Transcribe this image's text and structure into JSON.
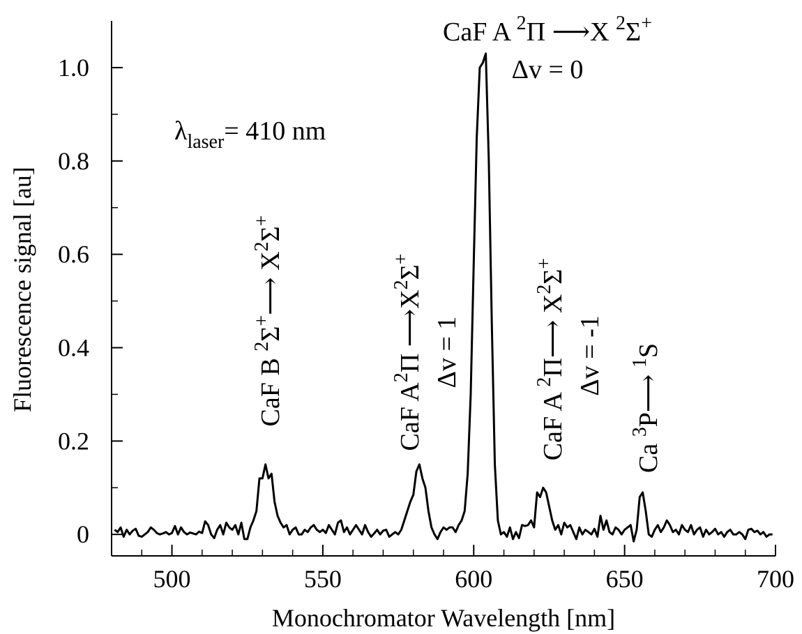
{
  "chart_data": {
    "type": "line",
    "xlabel": "Monochromator Wavelength [nm]",
    "ylabel": "Fluorescence signal [au]",
    "xlim": [
      480,
      700
    ],
    "ylim": [
      -0.046,
      1.1
    ],
    "xticks": [
      500,
      550,
      600,
      650,
      700
    ],
    "xminorticks": [
      490,
      510,
      520,
      530,
      540,
      560,
      570,
      580,
      590,
      610,
      620,
      630,
      640,
      660,
      670,
      680,
      690
    ],
    "yticks": [
      0,
      0.2,
      0.4,
      0.6,
      0.8,
      {
        "value": 1,
        "label": "1.0"
      }
    ],
    "yminorticks": [
      0.1,
      0.3,
      0.5,
      0.7,
      0.9
    ],
    "series": [
      {
        "color": "#000000",
        "x": [
          481,
          482,
          483,
          484,
          485,
          486,
          487,
          488,
          489,
          490,
          491,
          492,
          493,
          494,
          495,
          496,
          497,
          498,
          499,
          500,
          501,
          502,
          503,
          504,
          505,
          506,
          507,
          508,
          509,
          510,
          511,
          512,
          513,
          514,
          515,
          516,
          517,
          518,
          519,
          520,
          521,
          522,
          523,
          524,
          525,
          526,
          527,
          528,
          529,
          530,
          531,
          532,
          533,
          534,
          535,
          536,
          537,
          538,
          539,
          540,
          541,
          542,
          543,
          544,
          545,
          546,
          547,
          548,
          549,
          550,
          551,
          552,
          553,
          554,
          555,
          556,
          557,
          558,
          559,
          560,
          561,
          562,
          563,
          564,
          565,
          566,
          567,
          568,
          569,
          570,
          571,
          572,
          573,
          574,
          575,
          576,
          577,
          578,
          579,
          580,
          581,
          582,
          583,
          584,
          585,
          586,
          587,
          588,
          589,
          590,
          591,
          592,
          593,
          594,
          595,
          596,
          597,
          598,
          599,
          600,
          601,
          602,
          603,
          604,
          605,
          606,
          607,
          608,
          609,
          610,
          611,
          612,
          613,
          614,
          615,
          616,
          617,
          618,
          619,
          620,
          621,
          622,
          623,
          624,
          625,
          626,
          627,
          628,
          629,
          630,
          631,
          632,
          633,
          634,
          635,
          636,
          637,
          638,
          639,
          640,
          641,
          642,
          643,
          644,
          645,
          646,
          647,
          648,
          649,
          650,
          651,
          652,
          653,
          654,
          655,
          656,
          657,
          658,
          659,
          660,
          661,
          662,
          663,
          664,
          665,
          666,
          667,
          668,
          669,
          670,
          671,
          672,
          673,
          674,
          675,
          676,
          677,
          678,
          679,
          680,
          681,
          682,
          683,
          684,
          685,
          686,
          687,
          688,
          689,
          690,
          691,
          692,
          693,
          694,
          695,
          696,
          697,
          698,
          699
        ],
        "values": [
          0.01,
          0.005,
          0.015,
          -0.005,
          0.01,
          0.0,
          0.008,
          0.012,
          -0.003,
          -0.005,
          0.0,
          0.005,
          0.015,
          0.01,
          0.003,
          0.0,
          0.002,
          0.005,
          0.0,
          0.003,
          0.018,
          0.0,
          0.015,
          0.005,
          0.0,
          0.004,
          0.002,
          0.0,
          0.006,
          0.003,
          0.028,
          0.02,
          0.0,
          -0.008,
          0.01,
          0.02,
          0.0,
          0.025,
          0.015,
          0.01,
          0.02,
          0.0,
          0.025,
          -0.01,
          -0.01,
          0.015,
          0.03,
          0.05,
          0.12,
          0.12,
          0.15,
          0.12,
          0.13,
          0.07,
          0.04,
          0.025,
          0.015,
          0.02,
          0.0,
          0.01,
          0.015,
          0.0,
          0.0,
          0.01,
          0.005,
          0.015,
          0.02,
          0.01,
          0.005,
          0.01,
          0.003,
          0.02,
          0.01,
          0.0,
          0.025,
          0.03,
          0.005,
          0.015,
          0.0,
          0.01,
          0.02,
          0.01,
          0.0,
          0.02,
          0.005,
          -0.005,
          0.002,
          0.01,
          0.0,
          0.008,
          0.01,
          -0.005,
          0.0,
          0.005,
          0.0,
          0.01,
          0.03,
          0.05,
          0.07,
          0.085,
          0.135,
          0.15,
          0.12,
          0.1,
          0.05,
          0.015,
          0.0,
          -0.01,
          0.005,
          0.015,
          0.01,
          0.015,
          0.015,
          0.005,
          0.02,
          0.03,
          0.05,
          0.13,
          0.3,
          0.58,
          0.85,
          1.0,
          1.01,
          1.03,
          0.8,
          0.45,
          0.15,
          0.03,
          0.0,
          0.005,
          -0.005,
          0.015,
          -0.01,
          0.005,
          -0.008,
          0.02,
          0.018,
          0.02,
          0.03,
          0.015,
          0.09,
          0.08,
          0.1,
          0.09,
          0.06,
          0.03,
          0.01,
          0.02,
          0.0,
          0.025,
          0.015,
          0.02,
          0.005,
          -0.01,
          0.015,
          0.0,
          0.01,
          0.005,
          0.0,
          0.012,
          -0.005,
          0.04,
          0.01,
          0.03,
          0.005,
          0.0,
          0.015,
          0.01,
          0.0,
          0.01,
          0.015,
          0.02,
          -0.015,
          0.01,
          0.08,
          0.09,
          0.05,
          0.0,
          -0.005,
          0.01,
          0.02,
          0.005,
          0.015,
          0.03,
          0.02,
          0.005,
          0.01,
          0.0,
          0.02,
          0.01,
          0.005,
          0.02,
          0.0,
          0.01,
          0.015,
          -0.005,
          0.01,
          0.0,
          0.005,
          0.012,
          0.0,
          0.005,
          -0.005,
          0.005,
          0.01,
          0.0,
          0.0,
          0.005,
          0.0,
          -0.01,
          0.01,
          0.012,
          0.005,
          0.008,
          0.0,
          0.005,
          -0.005,
          0.0,
          0.0
        ]
      }
    ],
    "annotations": [
      {
        "parts": [
          {
            "t": "CaF A "
          },
          {
            "t": "2",
            "shift": "sup"
          },
          {
            "t": "Π ⟶X "
          },
          {
            "t": "2",
            "shift": "sup"
          },
          {
            "t": "Σ"
          },
          {
            "t": "+",
            "shift": "sup"
          }
        ]
      },
      {
        "parts": [
          {
            "t": "Δv = 0"
          }
        ]
      },
      {
        "parts": [
          {
            "t": "λ"
          },
          {
            "t": "laser",
            "shift": "sub"
          },
          {
            "t": "= 410  nm"
          }
        ]
      },
      {
        "parts": [
          {
            "t": "CaF B "
          },
          {
            "t": "2",
            "shift": "sup"
          },
          {
            "t": "Σ"
          },
          {
            "t": "+",
            "shift": "sup"
          },
          {
            "t": "⟶ X"
          },
          {
            "t": "2",
            "shift": "sup"
          },
          {
            "t": "Σ"
          },
          {
            "t": "+",
            "shift": "sup"
          }
        ]
      },
      {
        "parts": [
          {
            "t": "CaF A"
          },
          {
            "t": "2",
            "shift": "sup"
          },
          {
            "t": "Π ⟶X"
          },
          {
            "t": "2",
            "shift": "sup"
          },
          {
            "t": "Σ"
          },
          {
            "t": "+",
            "shift": "sup"
          }
        ]
      },
      {
        "parts": [
          {
            "t": "Δv = 1"
          }
        ]
      },
      {
        "parts": [
          {
            "t": "CaF A "
          },
          {
            "t": "2",
            "shift": "sup"
          },
          {
            "t": "Π⟶ X"
          },
          {
            "t": "2",
            "shift": "sup"
          },
          {
            "t": "Σ"
          },
          {
            "t": "+",
            "shift": "sup"
          }
        ]
      },
      {
        "parts": [
          {
            "t": "Δv = -1"
          }
        ]
      },
      {
        "parts": [
          {
            "t": "Ca "
          },
          {
            "t": "3",
            "shift": "sup"
          },
          {
            "t": "P⟶ "
          },
          {
            "t": "1",
            "shift": "sup"
          },
          {
            "t": "S"
          }
        ]
      }
    ]
  }
}
